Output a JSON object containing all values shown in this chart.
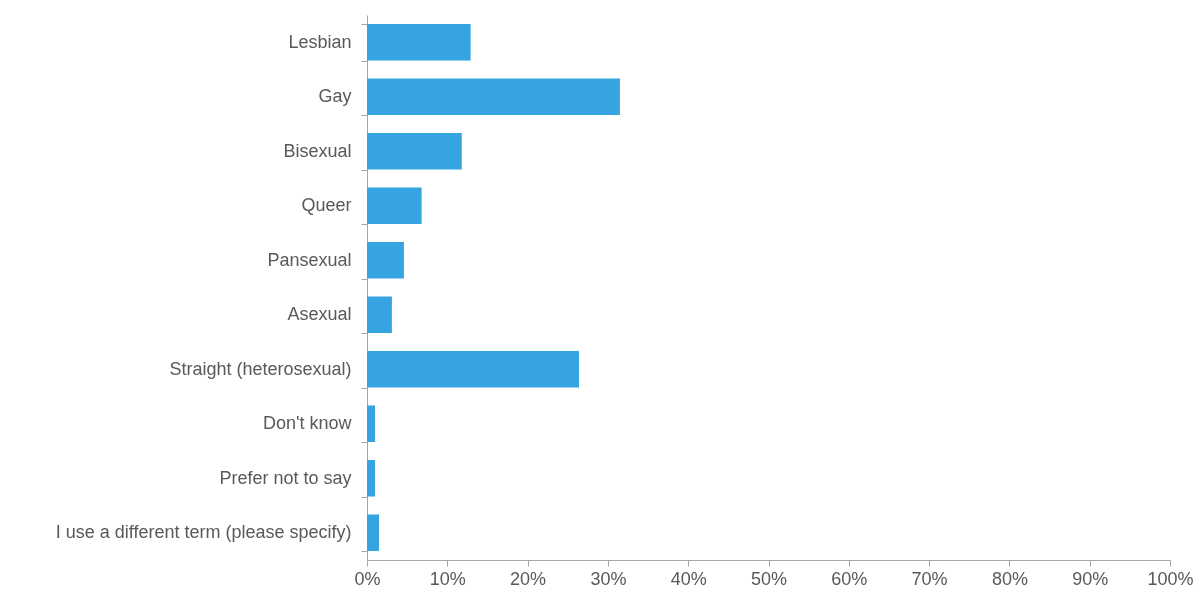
{
  "chart_data": {
    "type": "bar",
    "orientation": "horizontal",
    "categories": [
      "Lesbian",
      "Gay",
      "Bisexual",
      "Queer",
      "Pansexual",
      "Asexual",
      "Straight (heterosexual)",
      "Don't know",
      "Prefer not to say",
      "I use a different term (please specify)"
    ],
    "values": [
      12.9,
      31.5,
      11.8,
      6.8,
      4.6,
      3.1,
      26.4,
      1.0,
      1.0,
      1.5
    ],
    "color": "#35a4e0",
    "xlim": [
      0,
      100
    ],
    "xticks": [
      {
        "value": 0,
        "label": "0%"
      },
      {
        "value": 10,
        "label": "10%"
      },
      {
        "value": 20,
        "label": "20%"
      },
      {
        "value": 30,
        "label": "30%"
      },
      {
        "value": 40,
        "label": "40%"
      },
      {
        "value": 50,
        "label": "50%"
      },
      {
        "value": 60,
        "label": "60%"
      },
      {
        "value": 70,
        "label": "70%"
      },
      {
        "value": 80,
        "label": "80%"
      },
      {
        "value": 90,
        "label": "90%"
      },
      {
        "value": 100,
        "label": "100%"
      }
    ],
    "grid": false
  }
}
